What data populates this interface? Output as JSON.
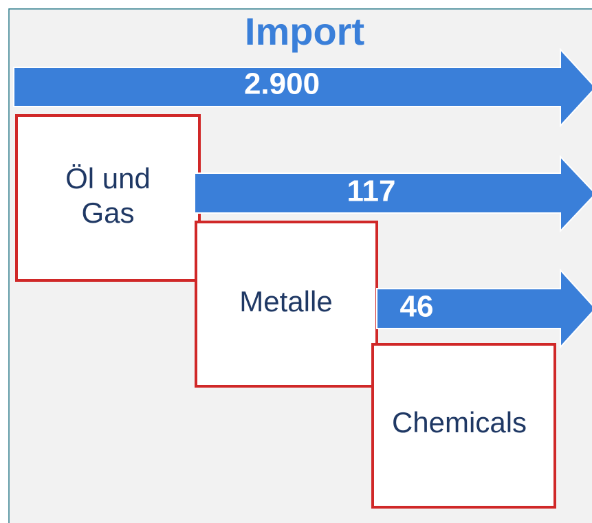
{
  "title": "Import",
  "arrows": [
    {
      "label": "2.900"
    },
    {
      "label": "117"
    },
    {
      "label": "46"
    }
  ],
  "boxes": [
    {
      "lines": [
        "Öl und",
        "Gas"
      ]
    },
    {
      "lines": [
        "Metalle"
      ]
    },
    {
      "lines": [
        "Chemicals"
      ]
    }
  ]
}
